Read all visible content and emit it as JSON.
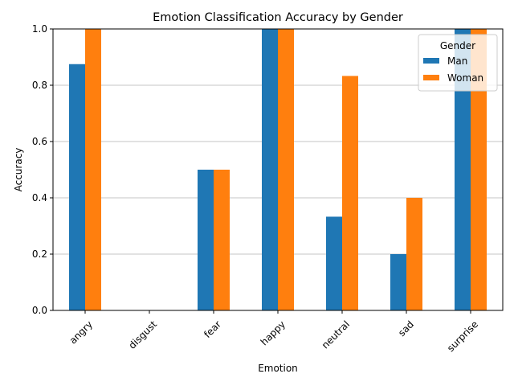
{
  "chart_data": {
    "type": "bar",
    "title": "Emotion Classification Accuracy by Gender",
    "xlabel": "Emotion",
    "ylabel": "Accuracy",
    "ylim": [
      0,
      1.0
    ],
    "yticks": [
      "0.0",
      "0.2",
      "0.4",
      "0.6",
      "0.8",
      "1.0"
    ],
    "categories": [
      "angry",
      "disgust",
      "fear",
      "happy",
      "neutral",
      "sad",
      "surprise"
    ],
    "series": [
      {
        "name": "Man",
        "color": "#1f77b4",
        "values": [
          0.875,
          0.0,
          0.5,
          1.0,
          0.333,
          0.2,
          1.0
        ]
      },
      {
        "name": "Woman",
        "color": "#ff7f0e",
        "values": [
          1.0,
          0.0,
          0.5,
          1.0,
          0.833,
          0.4,
          1.0
        ]
      }
    ],
    "grid": "y",
    "legend": {
      "title": "Gender",
      "placement": "top-right"
    }
  }
}
